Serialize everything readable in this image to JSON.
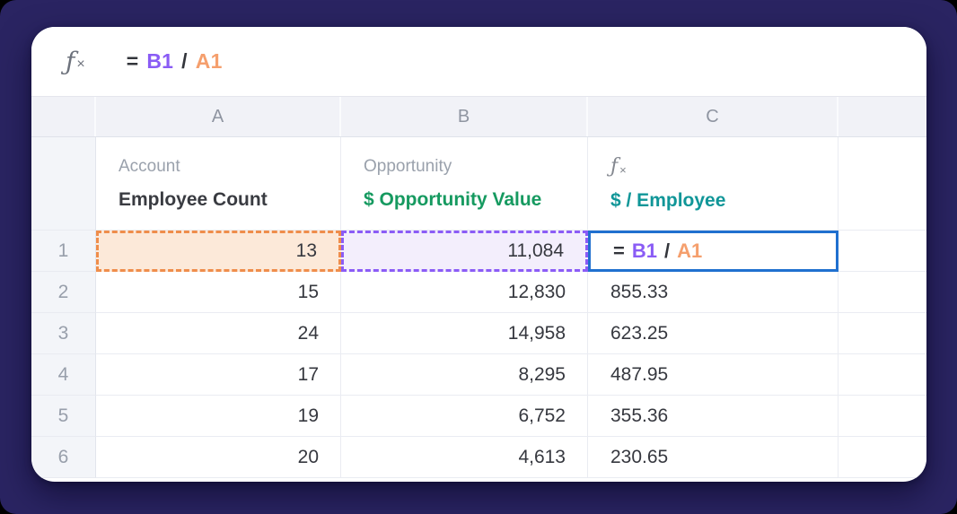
{
  "formula_bar": {
    "fx_icon": "ƒ",
    "fx_sub": "×",
    "tokens": {
      "eq": "=",
      "ref_b": "B1",
      "op": "/",
      "ref_a": "A1"
    }
  },
  "col_headers": {
    "a": "A",
    "b": "B",
    "c": "C"
  },
  "field_headers": {
    "a": {
      "category": "Account",
      "label": "Employee Count"
    },
    "b": {
      "category": "Opportunity",
      "label": "$ Opportunity Value"
    },
    "c": {
      "icon_f": "ƒ",
      "icon_x": "×",
      "label": "$ / Employee"
    }
  },
  "rows": [
    {
      "num": "1",
      "a": "13",
      "b": "11,084",
      "c_formula": {
        "eq": "=",
        "ref_b": "B1",
        "op": "/",
        "ref_a": "A1"
      }
    },
    {
      "num": "2",
      "a": "15",
      "b": "12,830",
      "c": "855.33"
    },
    {
      "num": "3",
      "a": "24",
      "b": "14,958",
      "c": "623.25"
    },
    {
      "num": "4",
      "a": "17",
      "b": "8,295",
      "c": "487.95"
    },
    {
      "num": "5",
      "a": "19",
      "b": "6,752",
      "c": "355.36"
    },
    {
      "num": "6",
      "a": "20",
      "b": "4,613",
      "c": "230.65"
    }
  ],
  "colors": {
    "page_background": "#2a2462",
    "ref_purple": "#8a5cf5",
    "ref_orange": "#f59f6d",
    "border_orange": "#ef8d4b",
    "fill_orange": "#fce9d9",
    "border_purple": "#8b5cf6",
    "fill_purple": "#f3eefc",
    "selected_blue": "#2070cf",
    "header_green": "#169a60",
    "header_teal": "#109698"
  }
}
